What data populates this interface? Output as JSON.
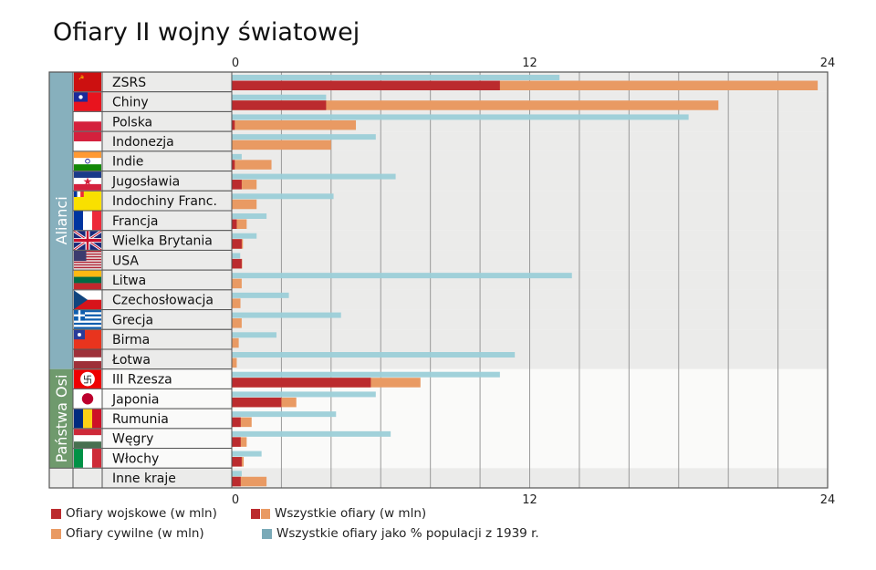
{
  "title": "Ofiary II wojny światowej",
  "colors": {
    "military": "#bb2b2e",
    "civilian": "#e99a63",
    "percent": "#9ccfd8",
    "allies": "#87b0bd",
    "axis": "#6f9a6d",
    "row_bg_allies": "#ebebea",
    "row_bg_axis": "#fafaf9"
  },
  "groups": [
    {
      "label": "Alianci",
      "rows": [
        0,
        14
      ]
    },
    {
      "label": "Państwa Osi",
      "rows": [
        15,
        19
      ]
    }
  ],
  "legend": {
    "military": "Ofiary wojskowe (w mln)",
    "civilian": "Ofiary cywilne (w mln)",
    "total": "Wszystkie ofiary (w mln)",
    "percent": "Wszystkie ofiary jako % populacji z 1939 r."
  },
  "chart_data": {
    "type": "bar",
    "orientation": "horizontal",
    "title": "Ofiary II wojny światowej",
    "xlim": [
      0,
      24
    ],
    "xticks": [
      "0",
      "12",
      "24"
    ],
    "grid": true,
    "grid_step": 2,
    "legend_position": "bottom",
    "categories": [
      "ZSRS",
      "Chiny",
      "Polska",
      "Indonezja",
      "Indie",
      "Jugosławia",
      "Indochiny Franc.",
      "Francja",
      "Wielka Brytania",
      "USA",
      "Litwa",
      "Czechosłowacja",
      "Grecja",
      "Birma",
      "Łotwa",
      "III Rzesza",
      "Japonia",
      "Rumunia",
      "Węgry",
      "Włochy",
      "Inne kraje"
    ],
    "flags": [
      "flag-ussr-icon",
      "flag-roc-icon",
      "flag-poland-icon",
      "flag-indonesia-icon",
      "flag-india-icon",
      "flag-yugoslavia-icon",
      "flag-french-indochina-icon",
      "flag-france-icon",
      "flag-uk-icon",
      "flag-usa-icon",
      "flag-lithuania-icon",
      "flag-czechoslovakia-icon",
      "flag-greece-icon",
      "flag-burma-icon",
      "flag-latvia-icon",
      "flag-nazi-germany-icon",
      "flag-japan-icon",
      "flag-romania-icon",
      "flag-hungary-icon",
      "flag-italy-icon",
      ""
    ],
    "series": [
      {
        "name": "Ofiary wojskowe (w mln)",
        "values": [
          10.8,
          3.8,
          0.12,
          0,
          0.12,
          0.4,
          0,
          0.2,
          0.4,
          0.4,
          0,
          0,
          0,
          0,
          0,
          5.6,
          2.0,
          0.36,
          0.36,
          0.4,
          0.36
        ]
      },
      {
        "name": "Wszystkie ofiary (w mln)",
        "values": [
          23.6,
          19.6,
          5.0,
          4.0,
          1.6,
          1.0,
          1.0,
          0.6,
          0.45,
          0.42,
          0.4,
          0.35,
          0.4,
          0.28,
          0.2,
          7.6,
          2.6,
          0.8,
          0.6,
          0.48,
          1.4
        ]
      },
      {
        "name": "Wszystkie ofiary jako % populacji z 1939 r.",
        "values": [
          13.2,
          3.8,
          18.4,
          5.8,
          0.4,
          6.6,
          4.1,
          1.4,
          1.0,
          0.34,
          13.7,
          2.3,
          4.4,
          1.8,
          11.4,
          10.8,
          5.8,
          4.2,
          6.4,
          1.2,
          0.4
        ]
      }
    ]
  }
}
